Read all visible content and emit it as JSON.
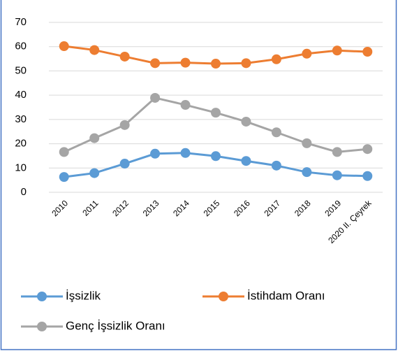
{
  "chart_data": {
    "type": "line",
    "categories": [
      "2010",
      "2011",
      "2012",
      "2013",
      "2014",
      "2015",
      "2016",
      "2017",
      "2018",
      "2019",
      "2020 II. Çeyrek"
    ],
    "series": [
      {
        "name": "İşsizlik",
        "color": "#5b9bd5",
        "values": [
          6.3,
          7.9,
          11.8,
          15.9,
          16.2,
          14.9,
          12.9,
          11.0,
          8.3,
          7.0,
          6.7
        ]
      },
      {
        "name": "İstihdam Oranı",
        "color": "#ed7d31",
        "values": [
          60.2,
          58.6,
          55.9,
          53.2,
          53.4,
          53.0,
          53.2,
          54.8,
          57.1,
          58.4,
          57.9
        ]
      },
      {
        "name": "Genç İşsizlik Oranı",
        "color": "#a5a5a5",
        "values": [
          16.6,
          22.3,
          27.7,
          38.9,
          36.0,
          32.8,
          29.1,
          24.7,
          20.2,
          16.6,
          17.8
        ]
      }
    ],
    "ylim": [
      0,
      70
    ],
    "yticks": [
      0,
      10,
      20,
      30,
      40,
      50,
      60,
      70
    ],
    "grid": true,
    "legend": "bottom"
  }
}
